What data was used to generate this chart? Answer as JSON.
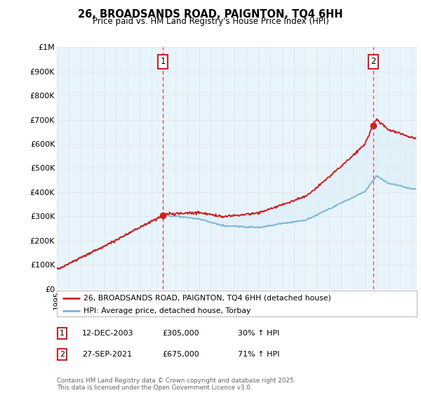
{
  "title": "26, BROADSANDS ROAD, PAIGNTON, TQ4 6HH",
  "subtitle": "Price paid vs. HM Land Registry's House Price Index (HPI)",
  "ylim": [
    0,
    1000000
  ],
  "yticks": [
    0,
    100000,
    200000,
    300000,
    400000,
    500000,
    600000,
    700000,
    800000,
    900000,
    1000000
  ],
  "ytick_labels": [
    "£0",
    "£100K",
    "£200K",
    "£300K",
    "£400K",
    "£500K",
    "£600K",
    "£700K",
    "£800K",
    "£900K",
    "£1M"
  ],
  "hpi_color": "#7ab3d4",
  "price_color": "#cc2222",
  "vline_color": "#cc2222",
  "fill_color": "#ddeeff",
  "sale1_date": 2003.95,
  "sale1_price": 305000,
  "sale2_date": 2021.74,
  "sale2_price": 675000,
  "legend_price_label": "26, BROADSANDS ROAD, PAIGNTON, TQ4 6HH (detached house)",
  "legend_hpi_label": "HPI: Average price, detached house, Torbay",
  "table_entries": [
    {
      "num": "1",
      "date": "12-DEC-2003",
      "price": "£305,000",
      "hpi": "30% ↑ HPI"
    },
    {
      "num": "2",
      "date": "27-SEP-2021",
      "price": "£675,000",
      "hpi": "71% ↑ HPI"
    }
  ],
  "footer": "Contains HM Land Registry data © Crown copyright and database right 2025.\nThis data is licensed under the Open Government Licence v3.0.",
  "background_color": "#ffffff",
  "grid_color": "#dddddd"
}
